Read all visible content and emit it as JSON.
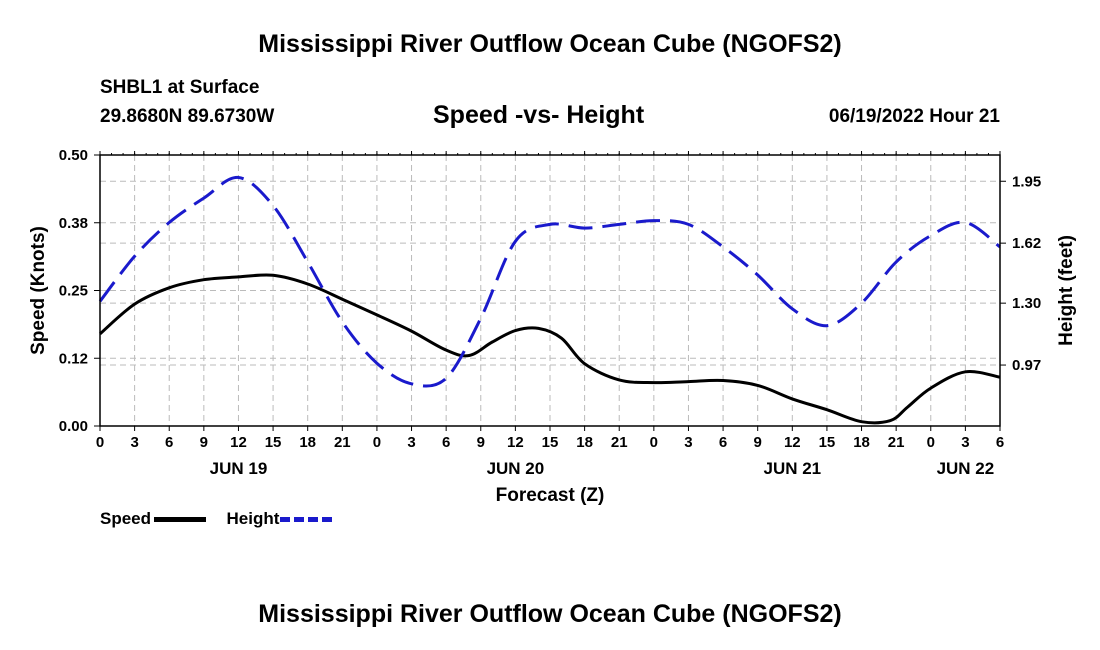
{
  "page": {
    "title_top": "Mississippi River Outflow Ocean Cube (NGOFS2)",
    "title_bottom": "Mississippi River Outflow Ocean Cube (NGOFS2)",
    "station": "SHBL1 at Surface",
    "coords": "29.8680N  89.6730W",
    "datetime": "06/19/2022 Hour 21"
  },
  "legend": {
    "speed_label": "Speed",
    "height_label": "Height"
  },
  "colors": {
    "speed": "#000000",
    "height": "#1a1acc",
    "grid": "#bbbbbb"
  },
  "chart_data": {
    "type": "line",
    "title": "Speed -vs- Height",
    "xlabel": "Forecast (Z)",
    "ylabel": "Speed (Knots)",
    "y2label": "Height (feet)",
    "x_unit": "hours since 06/19 00Z",
    "xlim": [
      0,
      78
    ],
    "ylim": [
      0,
      0.5
    ],
    "y2lim": [
      0.645,
      2.09
    ],
    "x_ticks": [
      0,
      3,
      6,
      9,
      12,
      15,
      18,
      21,
      24,
      27,
      30,
      33,
      36,
      39,
      42,
      45,
      48,
      51,
      54,
      57,
      60,
      63,
      66,
      69,
      72,
      75,
      78
    ],
    "x_tick_labels": [
      "0",
      "3",
      "6",
      "9",
      "12",
      "15",
      "18",
      "21",
      "0",
      "3",
      "6",
      "9",
      "12",
      "15",
      "18",
      "21",
      "0",
      "3",
      "6",
      "9",
      "12",
      "15",
      "18",
      "21",
      "0",
      "3",
      "6"
    ],
    "day_labels": [
      {
        "x": 12,
        "label": "JUN 19"
      },
      {
        "x": 36,
        "label": "JUN 20"
      },
      {
        "x": 60,
        "label": "JUN 21"
      },
      {
        "x": 75,
        "label": "JUN 22"
      }
    ],
    "y_ticks": [
      0.0,
      0.125,
      0.25,
      0.375,
      0.5
    ],
    "y_tick_labels": [
      "0.00",
      "0.12",
      "0.25",
      "0.38",
      "0.50"
    ],
    "y2_ticks": [
      0.97,
      1.3,
      1.62,
      1.95
    ],
    "y2_tick_labels": [
      "0.97",
      "1.30",
      "1.62",
      "1.95"
    ],
    "grid": true,
    "series": [
      {
        "name": "Speed",
        "axis": "left",
        "style": "solid",
        "x": [
          0,
          3,
          6,
          9,
          12,
          15,
          18,
          21,
          24,
          27,
          30,
          32,
          34,
          36,
          38,
          40,
          42,
          45,
          48,
          51,
          54,
          57,
          60,
          63,
          66,
          68.5,
          70,
          72,
          75,
          78
        ],
        "y": [
          0.17,
          0.225,
          0.255,
          0.27,
          0.275,
          0.278,
          0.262,
          0.234,
          0.205,
          0.175,
          0.14,
          0.13,
          0.155,
          0.176,
          0.18,
          0.162,
          0.115,
          0.085,
          0.08,
          0.082,
          0.084,
          0.075,
          0.05,
          0.03,
          0.008,
          0.01,
          0.035,
          0.07,
          0.1,
          0.09
        ]
      },
      {
        "name": "Height",
        "axis": "right",
        "style": "dashed",
        "x": [
          0,
          3,
          6,
          9,
          12,
          15,
          18,
          21,
          24,
          27,
          30,
          33,
          36,
          39,
          42,
          45,
          48,
          51,
          54,
          57,
          60,
          63,
          66,
          69,
          72,
          75,
          78
        ],
        "y": [
          1.31,
          1.55,
          1.73,
          1.86,
          1.97,
          1.82,
          1.52,
          1.2,
          0.98,
          0.87,
          0.9,
          1.22,
          1.63,
          1.72,
          1.7,
          1.72,
          1.74,
          1.72,
          1.6,
          1.45,
          1.27,
          1.18,
          1.3,
          1.52,
          1.66,
          1.73,
          1.6
        ]
      }
    ]
  }
}
